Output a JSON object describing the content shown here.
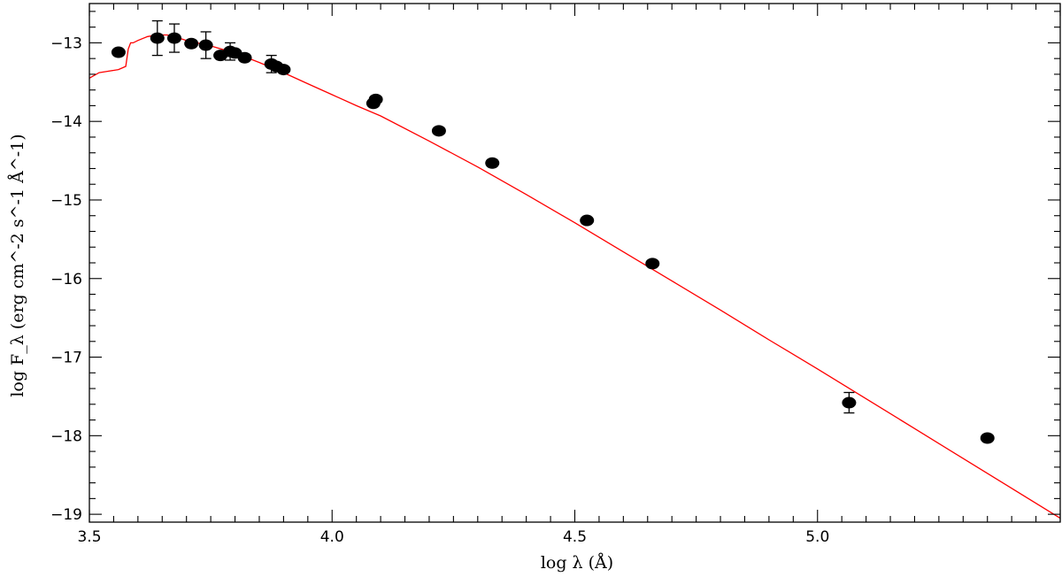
{
  "chart_data": {
    "type": "scatter",
    "xlabel": "log λ (Å)",
    "ylabel": "log F_λ (erg cm^-2 s^-1 Å^-1)",
    "xlim": [
      3.5,
      5.5
    ],
    "ylim": [
      -19.1,
      -12.5
    ],
    "x_ticks": [
      3.5,
      4.0,
      4.5,
      5.0
    ],
    "y_ticks": [
      -19,
      -18,
      -17,
      -16,
      -15,
      -14,
      -13
    ],
    "x_tick_labels": [
      "3.5",
      "4.0",
      "4.5",
      "5.0"
    ],
    "y_tick_labels": [
      "−19",
      "−18",
      "−17",
      "−16",
      "−15",
      "−14",
      "−13"
    ],
    "grid": false,
    "colors": {
      "model": "#ff0000",
      "points": "#000000"
    },
    "series": [
      {
        "kind": "points",
        "x": [
          3.56,
          3.64,
          3.675,
          3.71,
          3.74,
          3.77,
          3.79,
          3.8,
          3.82,
          3.875,
          3.885,
          3.9,
          4.085,
          4.09,
          4.22,
          4.33,
          4.525,
          4.66,
          5.065,
          5.35
        ],
        "y": [
          -13.12,
          -12.94,
          -12.94,
          -13.01,
          -13.03,
          -13.16,
          -13.11,
          -13.13,
          -13.19,
          -13.27,
          -13.3,
          -13.34,
          -13.77,
          -13.72,
          -14.12,
          -14.53,
          -15.26,
          -15.81,
          -17.58,
          -18.03
        ],
        "yerr": [
          0,
          0.22,
          0.18,
          0,
          0.17,
          0,
          0.11,
          0,
          0,
          0.11,
          0,
          0,
          0,
          0,
          0,
          0,
          0,
          0,
          0.13,
          0
        ]
      },
      {
        "kind": "model",
        "x": [
          3.5,
          3.52,
          3.54,
          3.56,
          3.575,
          3.58,
          3.585,
          3.59,
          3.6,
          3.62,
          3.64,
          3.66,
          3.68,
          3.7,
          3.75,
          3.8,
          3.85,
          3.9,
          3.95,
          4.0,
          4.05,
          4.1,
          4.2,
          4.3,
          4.4,
          4.5,
          4.6,
          4.7,
          4.8,
          4.9,
          5.0,
          5.1,
          5.2,
          5.3,
          5.4,
          5.5
        ],
        "y": [
          -13.45,
          -13.38,
          -13.36,
          -13.34,
          -13.3,
          -13.08,
          -13.0,
          -13.0,
          -12.97,
          -12.92,
          -12.9,
          -12.9,
          -12.93,
          -12.97,
          -13.04,
          -13.13,
          -13.25,
          -13.38,
          -13.52,
          -13.66,
          -13.8,
          -13.93,
          -14.25,
          -14.58,
          -14.93,
          -15.29,
          -15.66,
          -16.03,
          -16.4,
          -16.78,
          -17.15,
          -17.53,
          -17.91,
          -18.29,
          -18.67,
          -19.05
        ]
      }
    ]
  }
}
